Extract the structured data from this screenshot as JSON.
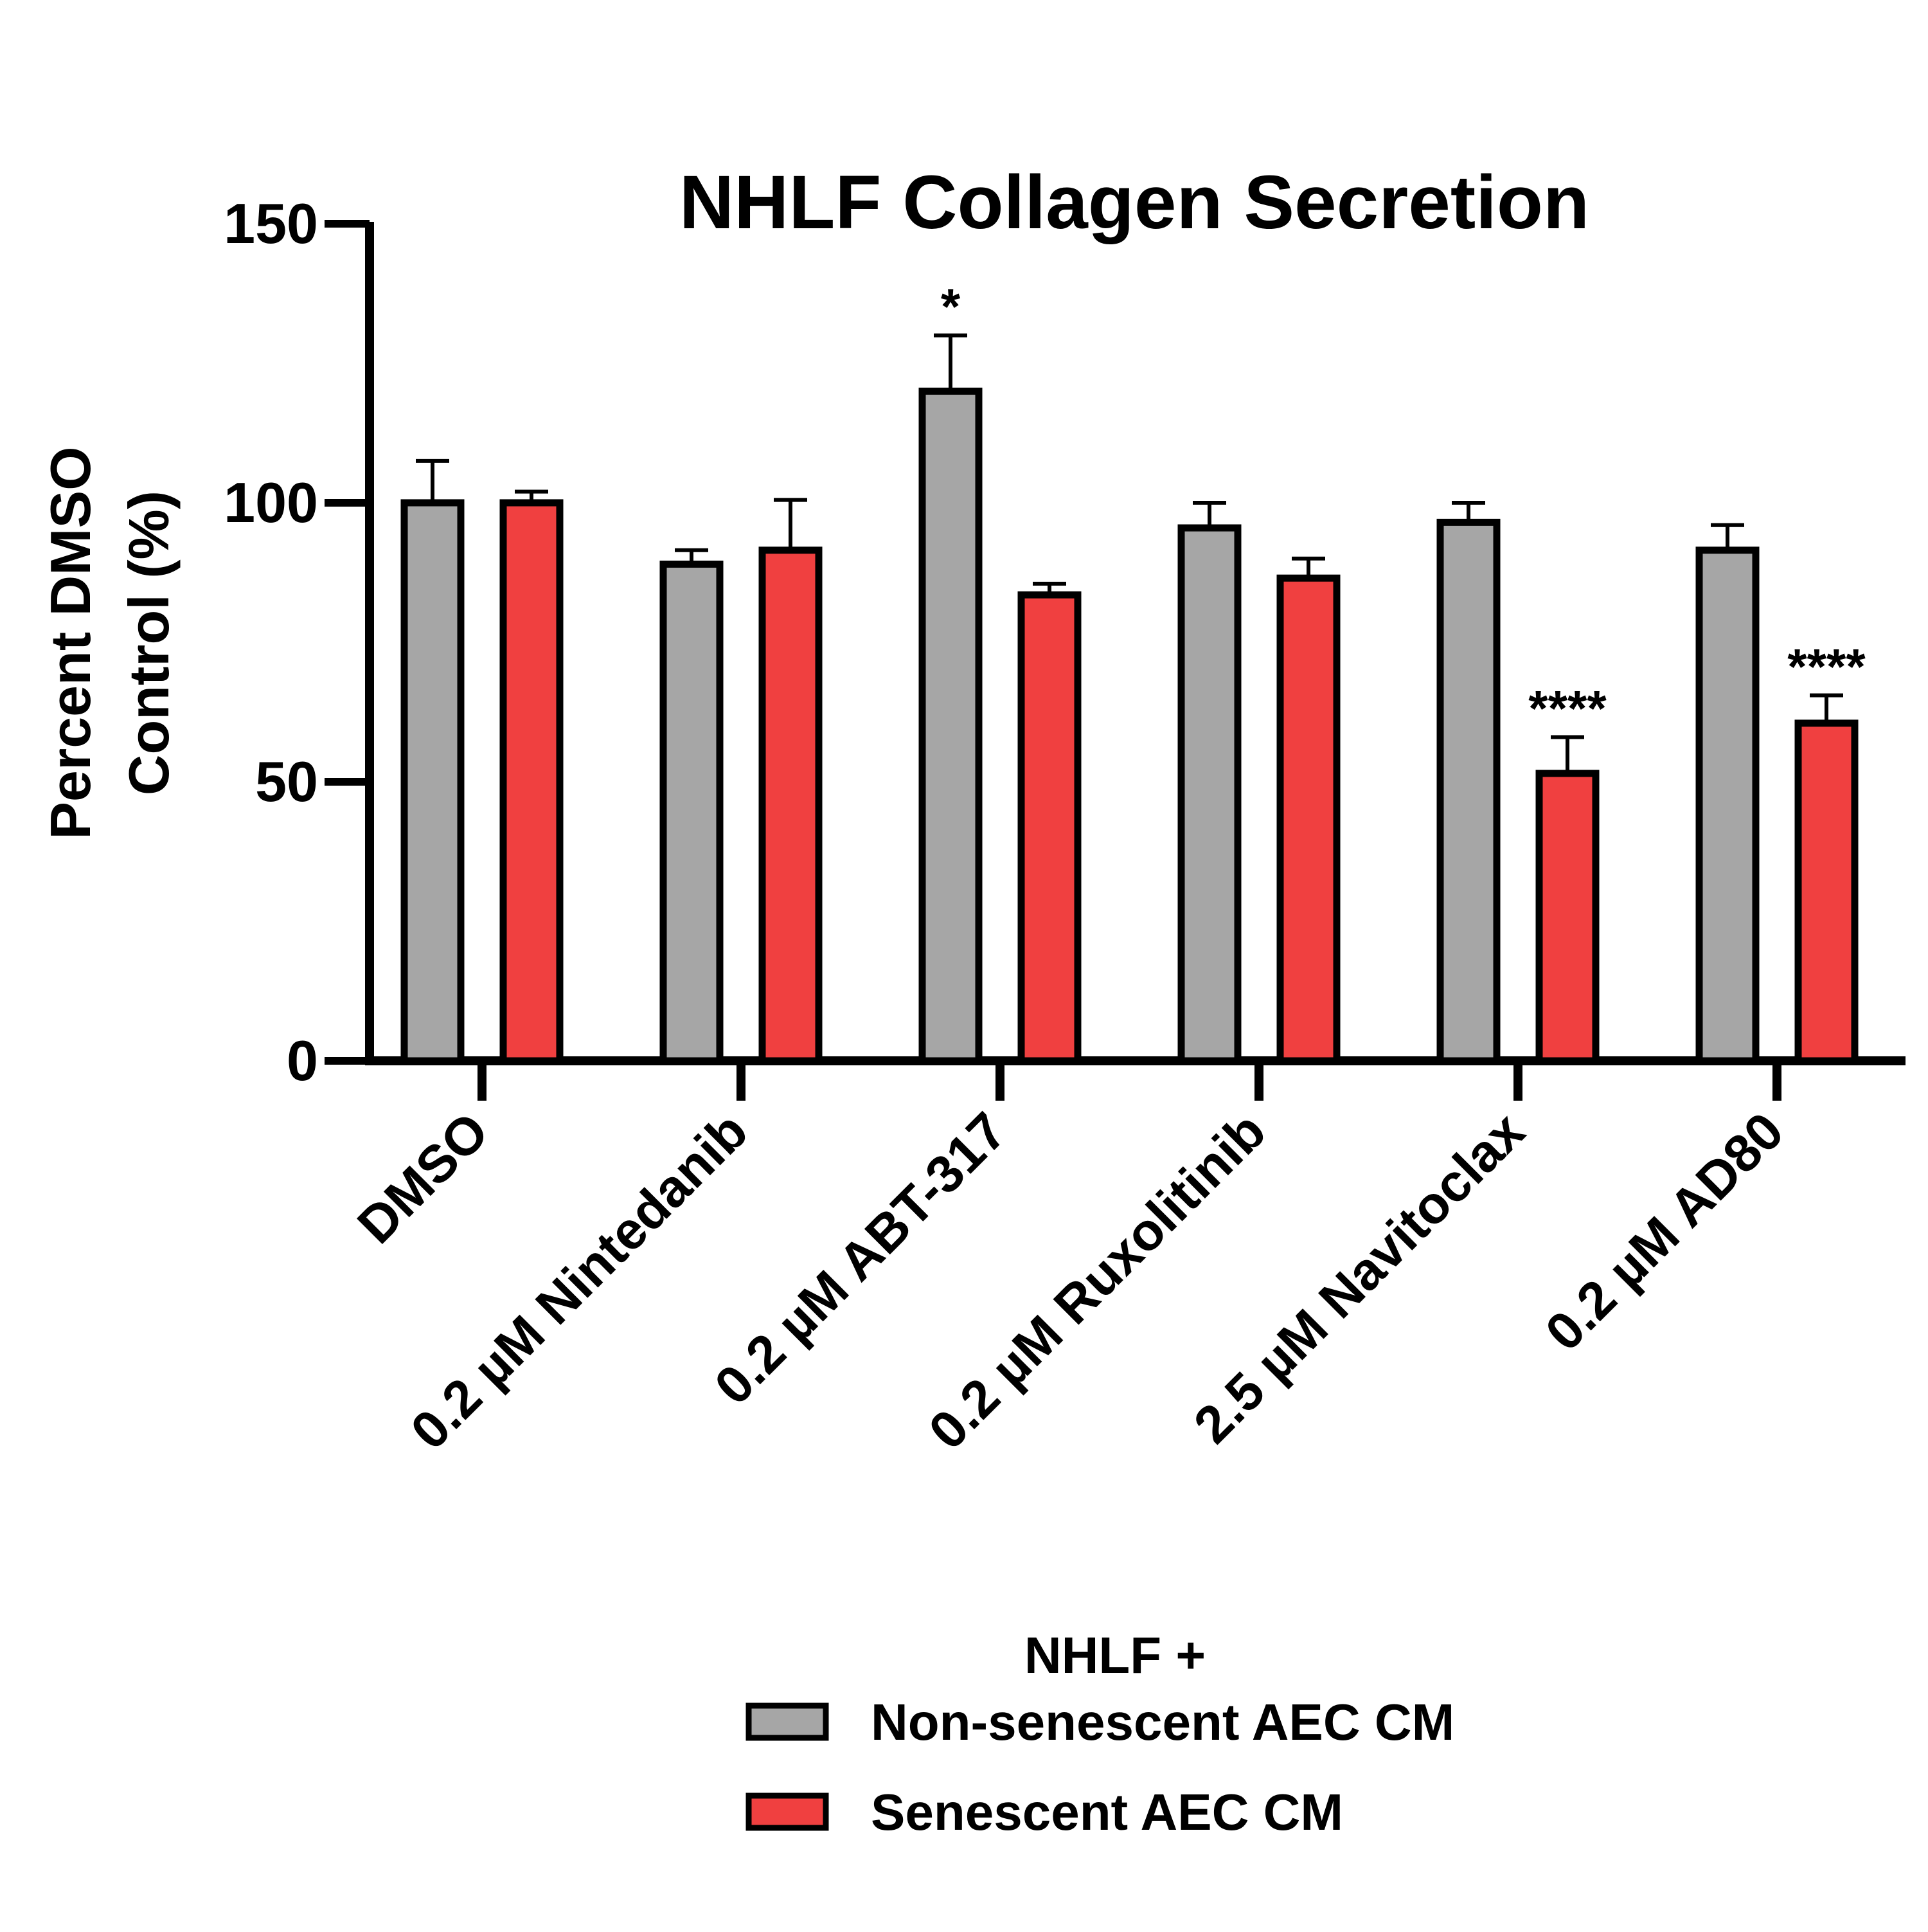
{
  "chart_data": {
    "type": "bar",
    "title": "NHLF Collagen Secretion",
    "xlabel": "",
    "ylabel": [
      "Percent DMSO",
      "Control (%)"
    ],
    "ylim": [
      0,
      150
    ],
    "yticks": [
      0,
      50,
      100,
      150
    ],
    "categories": [
      "DMSO",
      "0.2 µM Nintedanib",
      "0.2 µM ABT-317",
      "0.2 µM Ruxolitinib",
      "2.5 µM Navitoclax",
      "0.2 µM AD80"
    ],
    "series": [
      {
        "name": "Non-senescent AEC CM",
        "color": "#a6a6a6",
        "values": [
          100,
          89,
          120,
          95.5,
          96.5,
          91.5
        ],
        "error": [
          7.5,
          2.5,
          10,
          4.5,
          3.5,
          4.5
        ],
        "annotations": [
          "",
          "",
          "*",
          "",
          "",
          ""
        ]
      },
      {
        "name": "Senescent AEC CM",
        "color": "#f04040",
        "values": [
          100,
          91.5,
          83.5,
          86.5,
          51.5,
          60.5
        ],
        "error": [
          2,
          9,
          2,
          3.5,
          6.5,
          5
        ],
        "annotations": [
          "",
          "",
          "",
          "",
          "****",
          "****"
        ]
      }
    ],
    "legend": {
      "title": "NHLF +",
      "position": "bottom-center"
    },
    "grid": false
  }
}
